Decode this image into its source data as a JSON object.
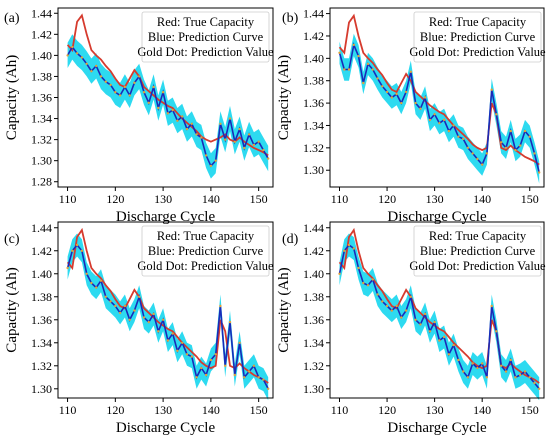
{
  "figure": {
    "xlabel": "Discharge Cycle",
    "ylabel": "Capacity (Ah)",
    "colors": {
      "true": "#d63b2e",
      "prediction": "#1a2ab8",
      "band": "#22d8ef",
      "dot": "#e0a23a"
    }
  },
  "chart_data": [
    {
      "type": "line",
      "panel_label": "(a)",
      "legend": [
        "Red: True Capacity",
        "Blue: Prediction Curve",
        "Gold Dot: Prediction Value"
      ],
      "legend_position": "top-right",
      "xlabel": "Discharge Cycle",
      "ylabel": "Capacity (Ah)",
      "xlim": [
        108,
        153
      ],
      "ylim": [
        1.275,
        1.445
      ],
      "xticks": [
        110,
        120,
        130,
        140,
        150
      ],
      "yticks": [
        1.28,
        1.3,
        1.32,
        1.34,
        1.36,
        1.38,
        1.4,
        1.42,
        1.44
      ],
      "grid": false,
      "band_halfwidth": 0.012,
      "series": [
        {
          "name": "True Capacity",
          "x": [
            110,
            111,
            112,
            113,
            114,
            115,
            116,
            117,
            118,
            119,
            120,
            121,
            122,
            123,
            124,
            125,
            126,
            127,
            128,
            129,
            130,
            131,
            132,
            133,
            134,
            135,
            136,
            137,
            138,
            139,
            140,
            141,
            142,
            143,
            144,
            145,
            146,
            147,
            148,
            149,
            150,
            151,
            152
          ],
          "y": [
            1.41,
            1.405,
            1.432,
            1.438,
            1.42,
            1.405,
            1.4,
            1.396,
            1.39,
            1.385,
            1.378,
            1.372,
            1.37,
            1.378,
            1.386,
            1.38,
            1.37,
            1.366,
            1.362,
            1.358,
            1.355,
            1.352,
            1.35,
            1.345,
            1.34,
            1.336,
            1.332,
            1.328,
            1.323,
            1.32,
            1.318,
            1.32,
            1.322,
            1.325,
            1.32,
            1.318,
            1.322,
            1.318,
            1.315,
            1.312,
            1.31,
            1.308,
            1.305
          ]
        },
        {
          "name": "Prediction Curve",
          "x": [
            110,
            111,
            112,
            113,
            114,
            115,
            116,
            117,
            118,
            119,
            120,
            121,
            122,
            123,
            124,
            125,
            126,
            127,
            128,
            129,
            130,
            131,
            132,
            133,
            134,
            135,
            136,
            137,
            138,
            139,
            140,
            141,
            142,
            143,
            144,
            145,
            146,
            147,
            148,
            149,
            150,
            151,
            152
          ],
          "y": [
            1.4,
            1.408,
            1.402,
            1.398,
            1.392,
            1.385,
            1.39,
            1.38,
            1.375,
            1.372,
            1.365,
            1.362,
            1.37,
            1.362,
            1.374,
            1.38,
            1.365,
            1.355,
            1.37,
            1.35,
            1.365,
            1.345,
            1.348,
            1.338,
            1.342,
            1.33,
            1.335,
            1.325,
            1.322,
            1.305,
            1.295,
            1.3,
            1.335,
            1.32,
            1.34,
            1.318,
            1.33,
            1.312,
            1.325,
            1.315,
            1.318,
            1.31,
            1.302
          ]
        }
      ]
    },
    {
      "type": "line",
      "panel_label": "(b)",
      "legend": [
        "Red: True Capacity",
        "Blue: Prediction Curve",
        "Gold Dot: Prediction Value"
      ],
      "legend_position": "top-right",
      "xlabel": "Discharge Cycle",
      "ylabel": "Capacity (Ah)",
      "xlim": [
        108,
        153
      ],
      "ylim": [
        1.285,
        1.445
      ],
      "xticks": [
        110,
        120,
        130,
        140,
        150
      ],
      "yticks": [
        1.3,
        1.32,
        1.34,
        1.36,
        1.38,
        1.4,
        1.42,
        1.44
      ],
      "grid": false,
      "band_halfwidth": 0.01,
      "series": [
        {
          "name": "True Capacity",
          "x": [
            110,
            111,
            112,
            113,
            114,
            115,
            116,
            117,
            118,
            119,
            120,
            121,
            122,
            123,
            124,
            125,
            126,
            127,
            128,
            129,
            130,
            131,
            132,
            133,
            134,
            135,
            136,
            137,
            138,
            139,
            140,
            141,
            142,
            143,
            144,
            145,
            146,
            147,
            148,
            149,
            150,
            151,
            152
          ],
          "y": [
            1.41,
            1.405,
            1.432,
            1.438,
            1.42,
            1.405,
            1.4,
            1.396,
            1.39,
            1.385,
            1.378,
            1.372,
            1.37,
            1.378,
            1.386,
            1.38,
            1.37,
            1.366,
            1.362,
            1.358,
            1.355,
            1.352,
            1.35,
            1.345,
            1.34,
            1.336,
            1.332,
            1.328,
            1.323,
            1.32,
            1.318,
            1.32,
            1.36,
            1.35,
            1.32,
            1.318,
            1.322,
            1.318,
            1.315,
            1.312,
            1.31,
            1.308,
            1.305
          ]
        },
        {
          "name": "Prediction Curve",
          "x": [
            110,
            111,
            112,
            113,
            114,
            115,
            116,
            117,
            118,
            119,
            120,
            121,
            122,
            123,
            124,
            125,
            126,
            127,
            128,
            129,
            130,
            131,
            132,
            133,
            134,
            135,
            136,
            137,
            138,
            139,
            140,
            141,
            142,
            143,
            144,
            145,
            146,
            147,
            148,
            149,
            150,
            151,
            152
          ],
          "y": [
            1.405,
            1.39,
            1.39,
            1.412,
            1.402,
            1.378,
            1.395,
            1.39,
            1.382,
            1.375,
            1.37,
            1.365,
            1.368,
            1.36,
            1.37,
            1.388,
            1.36,
            1.355,
            1.365,
            1.345,
            1.35,
            1.342,
            1.345,
            1.335,
            1.34,
            1.33,
            1.328,
            1.32,
            1.315,
            1.31,
            1.305,
            1.315,
            1.372,
            1.35,
            1.325,
            1.32,
            1.335,
            1.318,
            1.322,
            1.335,
            1.33,
            1.315,
            1.298
          ]
        }
      ]
    },
    {
      "type": "line",
      "panel_label": "(c)",
      "legend": [
        "Red: True Capacity",
        "Blue: Prediction Curve",
        "Gold Dot: Prediction Value"
      ],
      "legend_position": "top-right",
      "xlabel": "Discharge Cycle",
      "ylabel": "Capacity (Ah)",
      "xlim": [
        108,
        153
      ],
      "ylim": [
        1.292,
        1.445
      ],
      "xticks": [
        110,
        120,
        130,
        140,
        150
      ],
      "yticks": [
        1.3,
        1.32,
        1.34,
        1.36,
        1.38,
        1.4,
        1.42,
        1.44
      ],
      "grid": false,
      "band_halfwidth": 0.01,
      "series": [
        {
          "name": "True Capacity",
          "x": [
            110,
            111,
            112,
            113,
            114,
            115,
            116,
            117,
            118,
            119,
            120,
            121,
            122,
            123,
            124,
            125,
            126,
            127,
            128,
            129,
            130,
            131,
            132,
            133,
            134,
            135,
            136,
            137,
            138,
            139,
            140,
            141,
            142,
            143,
            144,
            145,
            146,
            147,
            148,
            149,
            150,
            151,
            152
          ],
          "y": [
            1.41,
            1.405,
            1.432,
            1.438,
            1.42,
            1.405,
            1.4,
            1.396,
            1.39,
            1.385,
            1.378,
            1.372,
            1.37,
            1.378,
            1.386,
            1.38,
            1.37,
            1.366,
            1.362,
            1.358,
            1.355,
            1.352,
            1.35,
            1.345,
            1.34,
            1.336,
            1.332,
            1.328,
            1.323,
            1.32,
            1.318,
            1.32,
            1.36,
            1.35,
            1.32,
            1.318,
            1.322,
            1.318,
            1.315,
            1.312,
            1.31,
            1.308,
            1.305
          ]
        },
        {
          "name": "Prediction Curve",
          "x": [
            110,
            111,
            112,
            113,
            114,
            115,
            116,
            117,
            118,
            119,
            120,
            121,
            122,
            123,
            124,
            125,
            126,
            127,
            128,
            129,
            130,
            131,
            132,
            133,
            134,
            135,
            136,
            137,
            138,
            139,
            140,
            141,
            142,
            143,
            144,
            145,
            146,
            147,
            148,
            149,
            150,
            151,
            152
          ],
          "y": [
            1.405,
            1.42,
            1.425,
            1.42,
            1.4,
            1.392,
            1.388,
            1.394,
            1.38,
            1.376,
            1.372,
            1.366,
            1.372,
            1.36,
            1.368,
            1.38,
            1.362,
            1.358,
            1.365,
            1.35,
            1.36,
            1.342,
            1.348,
            1.333,
            1.34,
            1.33,
            1.328,
            1.31,
            1.318,
            1.312,
            1.325,
            1.33,
            1.372,
            1.32,
            1.358,
            1.312,
            1.34,
            1.31,
            1.315,
            1.32,
            1.31,
            1.308,
            1.3
          ]
        }
      ]
    },
    {
      "type": "line",
      "panel_label": "(d)",
      "legend": [
        "Red: True Capacity",
        "Blue: Prediction Curve",
        "Gold Dot: Prediction Value"
      ],
      "legend_position": "top-right",
      "xlabel": "Discharge Cycle",
      "ylabel": "Capacity (Ah)",
      "xlim": [
        108,
        153
      ],
      "ylim": [
        1.292,
        1.445
      ],
      "xticks": [
        110,
        120,
        130,
        140,
        150
      ],
      "yticks": [
        1.3,
        1.32,
        1.34,
        1.36,
        1.38,
        1.4,
        1.42,
        1.44
      ],
      "grid": false,
      "band_halfwidth": 0.01,
      "series": [
        {
          "name": "True Capacity",
          "x": [
            110,
            111,
            112,
            113,
            114,
            115,
            116,
            117,
            118,
            119,
            120,
            121,
            122,
            123,
            124,
            125,
            126,
            127,
            128,
            129,
            130,
            131,
            132,
            133,
            134,
            135,
            136,
            137,
            138,
            139,
            140,
            141,
            142,
            143,
            144,
            145,
            146,
            147,
            148,
            149,
            150,
            151,
            152
          ],
          "y": [
            1.41,
            1.405,
            1.432,
            1.438,
            1.42,
            1.405,
            1.4,
            1.396,
            1.39,
            1.385,
            1.378,
            1.372,
            1.37,
            1.378,
            1.386,
            1.38,
            1.37,
            1.366,
            1.362,
            1.358,
            1.355,
            1.352,
            1.35,
            1.345,
            1.34,
            1.336,
            1.332,
            1.328,
            1.323,
            1.32,
            1.318,
            1.32,
            1.36,
            1.35,
            1.32,
            1.318,
            1.322,
            1.318,
            1.315,
            1.312,
            1.31,
            1.308,
            1.305
          ]
        },
        {
          "name": "Prediction Curve",
          "x": [
            110,
            111,
            112,
            113,
            114,
            115,
            116,
            117,
            118,
            119,
            120,
            121,
            122,
            123,
            124,
            125,
            126,
            127,
            128,
            129,
            130,
            131,
            132,
            133,
            134,
            135,
            136,
            137,
            138,
            139,
            140,
            141,
            142,
            143,
            144,
            145,
            146,
            147,
            148,
            149,
            150,
            151,
            152
          ],
          "y": [
            1.4,
            1.42,
            1.425,
            1.422,
            1.405,
            1.392,
            1.39,
            1.395,
            1.382,
            1.376,
            1.372,
            1.368,
            1.372,
            1.362,
            1.368,
            1.38,
            1.36,
            1.356,
            1.365,
            1.35,
            1.358,
            1.342,
            1.345,
            1.33,
            1.338,
            1.325,
            1.315,
            1.31,
            1.322,
            1.318,
            1.322,
            1.31,
            1.372,
            1.35,
            1.32,
            1.315,
            1.325,
            1.31,
            1.312,
            1.315,
            1.31,
            1.305,
            1.3
          ]
        }
      ]
    }
  ]
}
